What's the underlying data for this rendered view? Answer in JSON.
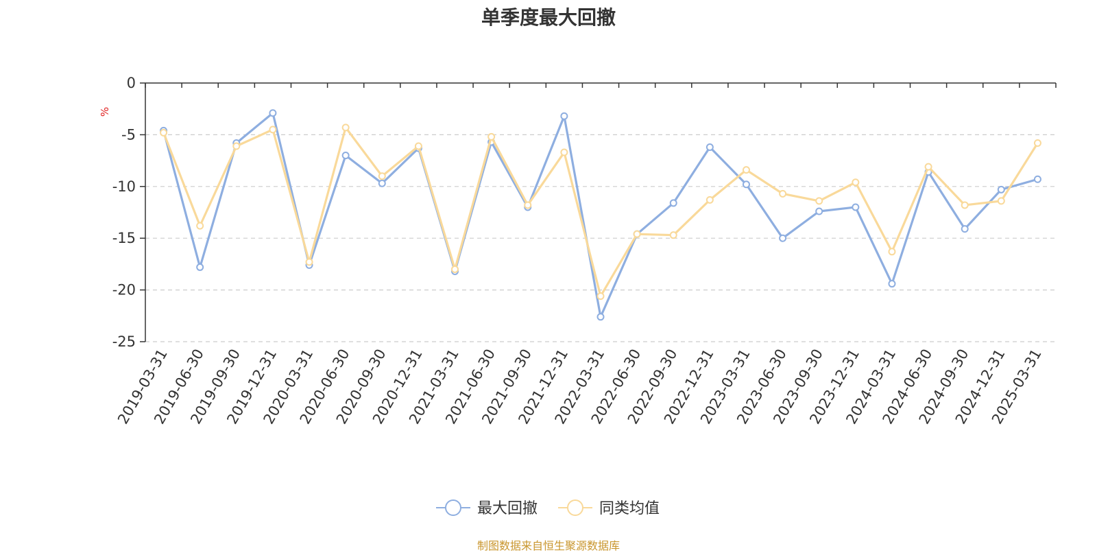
{
  "chart_data": {
    "type": "line",
    "title": "单季度最大回撤",
    "ylabel": "%",
    "xlabel": "",
    "ylim": [
      -25,
      0
    ],
    "yticks": [
      0,
      -5,
      -10,
      -15,
      -20,
      -25
    ],
    "grid": true,
    "legend_position": "bottom-center",
    "categories": [
      "2019-03-31",
      "2019-06-30",
      "2019-09-30",
      "2019-12-31",
      "2020-03-31",
      "2020-06-30",
      "2020-09-30",
      "2020-12-31",
      "2021-03-31",
      "2021-06-30",
      "2021-09-30",
      "2021-12-31",
      "2022-03-31",
      "2022-06-30",
      "2022-09-30",
      "2022-12-31",
      "2023-03-31",
      "2023-06-30",
      "2023-09-30",
      "2023-12-31",
      "2024-03-31",
      "2024-06-30",
      "2024-09-30",
      "2024-12-31",
      "2025-03-31"
    ],
    "series": [
      {
        "name": "最大回撤",
        "color": "#8eaee0",
        "values": [
          -4.6,
          -17.8,
          -5.8,
          -2.9,
          -17.6,
          -7.0,
          -9.7,
          -6.3,
          -18.2,
          -5.7,
          -12.0,
          -3.2,
          -22.6,
          -14.6,
          -11.6,
          -6.2,
          -9.8,
          -15.0,
          -12.4,
          -12.0,
          -19.4,
          -8.6,
          -14.1,
          -10.3,
          -9.3
        ]
      },
      {
        "name": "同类均值",
        "color": "#f9d99a",
        "values": [
          -4.8,
          -13.8,
          -6.1,
          -4.5,
          -17.3,
          -4.3,
          -9.0,
          -6.1,
          -18.0,
          -5.2,
          -11.8,
          -6.7,
          -20.6,
          -14.6,
          -14.7,
          -11.3,
          -8.4,
          -10.7,
          -11.4,
          -9.6,
          -16.3,
          -8.1,
          -11.8,
          -11.4,
          -5.8
        ]
      }
    ]
  },
  "footer": "制图数据来自恒生聚源数据库"
}
